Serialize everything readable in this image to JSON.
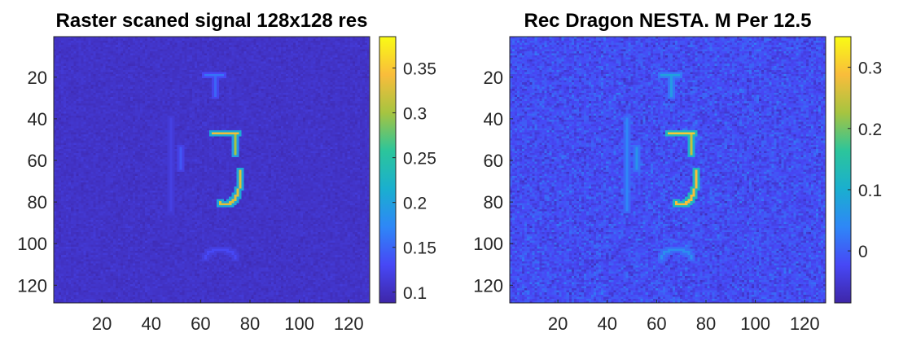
{
  "figure": {
    "colormap": "parula",
    "colormap_stops": [
      "#3e26a8",
      "#4748f6",
      "#2e87f7",
      "#1aafcf",
      "#2cc59b",
      "#a6c440",
      "#f9bd3b",
      "#f9fb15"
    ],
    "background": "#ffffff"
  },
  "chart_data": [
    {
      "type": "heatmap",
      "title": "Raster scaned signal 128x128 res",
      "image_size": [
        128,
        128
      ],
      "xlim": [
        0.5,
        128.5
      ],
      "ylim": [
        0.5,
        128.5
      ],
      "y_direction": "reverse",
      "xticks": [
        20,
        40,
        60,
        80,
        100,
        120
      ],
      "xtick_labels": [
        "20",
        "40",
        "60",
        "80",
        "100",
        "120"
      ],
      "yticks": [
        20,
        40,
        60,
        80,
        100,
        120
      ],
      "ytick_labels": [
        "20",
        "40",
        "60",
        "80",
        "100",
        "120"
      ],
      "clim": [
        0.088,
        0.385
      ],
      "colorbar_ticks": [
        0.1,
        0.15,
        0.2,
        0.25,
        0.3,
        0.35
      ],
      "colorbar_labels": [
        "0.1",
        "0.15",
        "0.2",
        "0.25",
        "0.3",
        "0.35"
      ],
      "background_level": 0.105,
      "noise_std": 0.004,
      "features": [
        {
          "name": "digit-5-top-bar",
          "kind": "segment",
          "from": [
            65,
            47
          ],
          "to": [
            75,
            47
          ],
          "value": 0.34
        },
        {
          "name": "digit-5-stem",
          "kind": "segment",
          "from": [
            74,
            47
          ],
          "to": [
            74,
            57
          ],
          "value": 0.3
        },
        {
          "name": "digit-5-lower-loop",
          "kind": "arc",
          "center": [
            70,
            69
          ],
          "radius": [
            6,
            12
          ],
          "start_deg": 340,
          "end_deg": 110,
          "value": 0.33
        },
        {
          "name": "faint-t-top",
          "kind": "segment",
          "from": [
            62,
            19
          ],
          "to": [
            69,
            19
          ],
          "value": 0.16
        },
        {
          "name": "faint-t-stem",
          "kind": "segment",
          "from": [
            66,
            20
          ],
          "to": [
            66,
            29
          ],
          "value": 0.15
        },
        {
          "name": "faint-left-bracket",
          "kind": "segment",
          "from": [
            52,
            54
          ],
          "to": [
            52,
            64
          ],
          "value": 0.14
        },
        {
          "name": "faint-left-ticks",
          "kind": "segment",
          "from": [
            48,
            40
          ],
          "to": [
            48,
            84
          ],
          "value": 0.12
        },
        {
          "name": "faint-bottom-arc",
          "kind": "arc",
          "center": [
            68,
            107
          ],
          "radius": [
            6,
            4
          ],
          "start_deg": 180,
          "end_deg": 360,
          "value": 0.13
        }
      ]
    },
    {
      "type": "heatmap",
      "title": "Rec Dragon NESTA. M Per 12.5",
      "image_size": [
        128,
        128
      ],
      "xlim": [
        0.5,
        128.5
      ],
      "ylim": [
        0.5,
        128.5
      ],
      "y_direction": "reverse",
      "xticks": [
        20,
        40,
        60,
        80,
        100,
        120
      ],
      "xtick_labels": [
        "20",
        "40",
        "60",
        "80",
        "100",
        "120"
      ],
      "yticks": [
        20,
        40,
        60,
        80,
        100,
        120
      ],
      "ytick_labels": [
        "20",
        "40",
        "60",
        "80",
        "100",
        "120"
      ],
      "clim": [
        -0.085,
        0.35
      ],
      "colorbar_ticks": [
        0,
        0.1,
        0.2,
        0.3
      ],
      "colorbar_labels": [
        "0",
        "0.1",
        "0.2",
        "0.3"
      ],
      "background_level": -0.02,
      "noise_std": 0.018,
      "features": [
        {
          "name": "digit-5-top-bar",
          "kind": "segment",
          "from": [
            65,
            47
          ],
          "to": [
            75,
            47
          ],
          "value": 0.3
        },
        {
          "name": "digit-5-stem",
          "kind": "segment",
          "from": [
            74,
            47
          ],
          "to": [
            74,
            57
          ],
          "value": 0.25
        },
        {
          "name": "digit-5-lower-loop",
          "kind": "arc",
          "center": [
            70,
            69
          ],
          "radius": [
            6,
            12
          ],
          "start_deg": 340,
          "end_deg": 110,
          "value": 0.29
        },
        {
          "name": "faint-t-top",
          "kind": "segment",
          "from": [
            62,
            19
          ],
          "to": [
            69,
            19
          ],
          "value": 0.08
        },
        {
          "name": "faint-t-stem",
          "kind": "segment",
          "from": [
            66,
            20
          ],
          "to": [
            66,
            29
          ],
          "value": 0.07
        },
        {
          "name": "faint-left-bracket",
          "kind": "segment",
          "from": [
            52,
            54
          ],
          "to": [
            52,
            64
          ],
          "value": 0.06
        },
        {
          "name": "faint-left-ticks",
          "kind": "segment",
          "from": [
            48,
            40
          ],
          "to": [
            48,
            84
          ],
          "value": 0.04
        },
        {
          "name": "faint-bottom-arc",
          "kind": "arc",
          "center": [
            68,
            107
          ],
          "radius": [
            6,
            4
          ],
          "start_deg": 180,
          "end_deg": 360,
          "value": 0.05
        }
      ]
    }
  ]
}
